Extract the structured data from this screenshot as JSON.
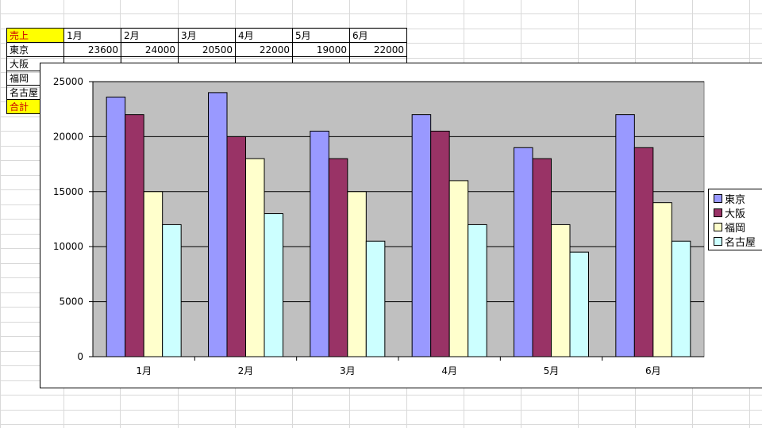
{
  "sheet": {
    "header_row": [
      "売上",
      "1月",
      "2月",
      "3月",
      "4月",
      "5月",
      "6月"
    ],
    "rows": [
      {
        "label": "東京",
        "values": [
          "23600",
          "24000",
          "20500",
          "22000",
          "19000",
          "22000"
        ]
      },
      {
        "label": "大阪",
        "values": [
          "",
          "",
          "",
          "",
          "",
          ""
        ]
      },
      {
        "label": "福岡",
        "values": [
          "",
          "",
          "",
          "",
          "",
          ""
        ]
      },
      {
        "label": "名古屋",
        "values": [
          "",
          "",
          "",
          "",
          "",
          ""
        ]
      },
      {
        "label": "合計",
        "values": [
          "",
          "",
          "",
          "",
          "",
          ""
        ]
      }
    ]
  },
  "chart_data": {
    "type": "bar",
    "categories": [
      "1月",
      "2月",
      "3月",
      "4月",
      "5月",
      "6月"
    ],
    "series": [
      {
        "name": "東京",
        "color": "#9999ff",
        "values": [
          23600,
          24000,
          20500,
          22000,
          19000,
          22000
        ]
      },
      {
        "name": "大阪",
        "color": "#993366",
        "values": [
          22000,
          20000,
          18000,
          20500,
          18000,
          19000
        ]
      },
      {
        "name": "福岡",
        "color": "#ffffcc",
        "values": [
          15000,
          18000,
          15000,
          16000,
          12000,
          14000
        ]
      },
      {
        "name": "名古屋",
        "color": "#ccffff",
        "values": [
          12000,
          13000,
          10500,
          12000,
          9500,
          10500
        ]
      }
    ],
    "ylim": [
      0,
      25000
    ],
    "yticks": [
      "0",
      "5000",
      "10000",
      "15000",
      "20000",
      "25000"
    ],
    "plot_background": "#c0c0c0",
    "grid": true,
    "legend_position": "right"
  }
}
